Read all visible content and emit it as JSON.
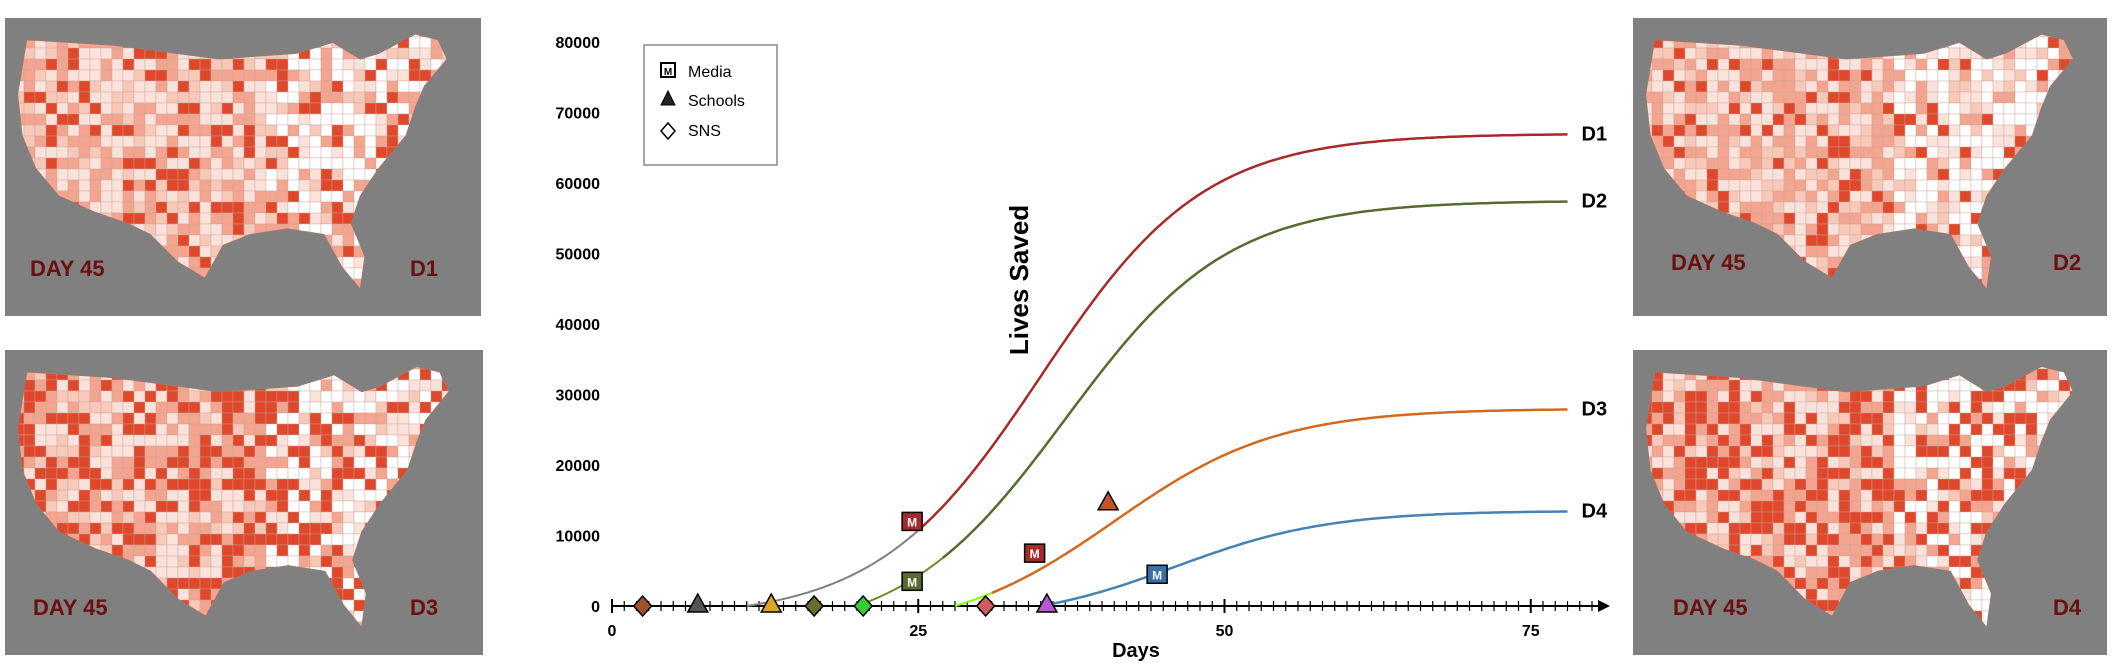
{
  "maps": [
    {
      "id": "top-left",
      "day_label": "DAY 45",
      "scenario_label": "D1"
    },
    {
      "id": "bottom-left",
      "day_label": "DAY 45",
      "scenario_label": "D3"
    },
    {
      "id": "top-right",
      "day_label": "DAY 45",
      "scenario_label": "D2"
    },
    {
      "id": "bottom-right",
      "day_label": "DAY 45",
      "scenario_label": "D4"
    }
  ],
  "colors": {
    "map_background": "#808080",
    "map_light": "#fbe3dc",
    "map_mid": "#f4a58f",
    "map_dark": "#e0482c",
    "map_label": "#6b0f0f"
  },
  "chart_data": {
    "type": "line",
    "xlabel": "Days",
    "ylabel": "Lives Saved",
    "xlim": [
      0,
      80
    ],
    "ylim": [
      0,
      80000
    ],
    "x_ticks": [
      0,
      25,
      50,
      75
    ],
    "y_ticks": [
      0,
      10000,
      20000,
      30000,
      40000,
      50000,
      60000,
      70000,
      80000
    ],
    "legend": [
      {
        "label": "Media",
        "icon": "media-square-icon"
      },
      {
        "label": "Schools",
        "icon": "schools-triangle-icon"
      },
      {
        "label": "SNS",
        "icon": "sns-diamond-icon"
      }
    ],
    "legend_position": "top-left",
    "series": [
      {
        "name": "D1",
        "color": "#a52a2a",
        "pre_color": "#808080",
        "start": 11,
        "L": 67000,
        "k": 0.15,
        "x0": 35
      },
      {
        "name": "D2",
        "color": "#556b2f",
        "pre_color": "#6b8e23",
        "start": 20,
        "L": 57500,
        "k": 0.15,
        "x0": 37
      },
      {
        "name": "D3",
        "color": "#d2691e",
        "pre_color": "#7fff00",
        "start": 28,
        "L": 28000,
        "k": 0.15,
        "x0": 41
      },
      {
        "name": "D4",
        "color": "#4682b4",
        "pre_color": "#da70d6",
        "start": 35,
        "L": 13500,
        "k": 0.16,
        "x0": 46
      }
    ],
    "markers": [
      {
        "type": "sns",
        "x": 2.5,
        "y": 0,
        "color": "#a0522d"
      },
      {
        "type": "schools",
        "x": 7,
        "y": 0,
        "color": "#555555"
      },
      {
        "type": "schools",
        "x": 13,
        "y": 0,
        "color": "#daa520"
      },
      {
        "type": "sns",
        "x": 16.5,
        "y": 0,
        "color": "#6b6b2f"
      },
      {
        "type": "sns",
        "x": 20.5,
        "y": 0,
        "color": "#32cd32"
      },
      {
        "type": "media",
        "x": 24.5,
        "y": 12000,
        "color": "#a52a2a"
      },
      {
        "type": "media",
        "x": 24.5,
        "y": 3500,
        "color": "#556b2f"
      },
      {
        "type": "sns",
        "x": 30.5,
        "y": 0,
        "color": "#cd5c5c"
      },
      {
        "type": "media",
        "x": 34.5,
        "y": 7500,
        "color": "#a52a2a"
      },
      {
        "type": "schools",
        "x": 35.5,
        "y": 0,
        "color": "#ba55d3"
      },
      {
        "type": "schools",
        "x": 40.5,
        "y": 14500,
        "color": "#c0552a"
      },
      {
        "type": "media",
        "x": 44.5,
        "y": 4500,
        "color": "#3a6ea5"
      }
    ]
  }
}
